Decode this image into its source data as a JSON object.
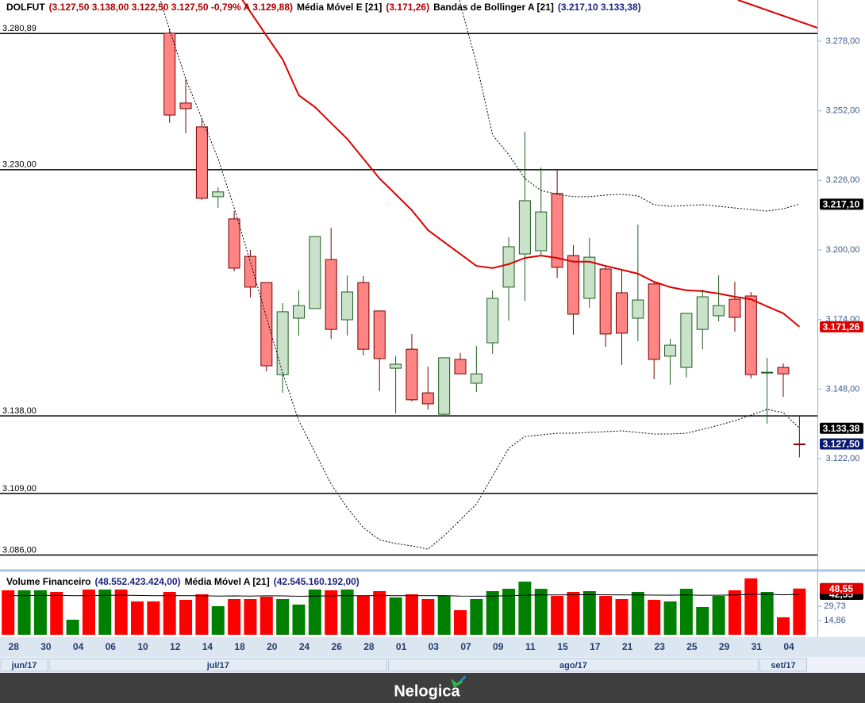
{
  "chart_data": [
    {
      "type": "candlestick",
      "symbol": "DOLFUT",
      "symbol_color": "#000000",
      "quote": "(3.127,50  3.138,00  3.122,50  3.127,50  -0,79%  A 3.129,88)",
      "quote_color": "#b00000",
      "categories": [
        "28",
        null,
        "30",
        null,
        "04",
        null,
        "06",
        null,
        "10",
        null,
        "12",
        null,
        "14",
        null,
        "18",
        null,
        "20",
        null,
        "24",
        null,
        "26",
        null,
        "28",
        null,
        "01",
        null,
        "03",
        null,
        "07",
        null,
        "09",
        null,
        "11",
        null,
        "15",
        null,
        "17",
        null,
        "21",
        null,
        "23",
        null,
        "25",
        null,
        "29",
        null,
        "31",
        null,
        "04",
        null
      ],
      "months": [
        "jun/17",
        "jun/17",
        "jun/17",
        "jul/17",
        "jul/17",
        "jul/17",
        "jul/17",
        "jul/17",
        "jul/17",
        "jul/17",
        "jul/17",
        "jul/17",
        "jul/17",
        "jul/17",
        "jul/17",
        "jul/17",
        "jul/17",
        "jul/17",
        "jul/17",
        "jul/17",
        "jul/17",
        "jul/17",
        "jul/17",
        "jul/17",
        "ago/17",
        "ago/17",
        "ago/17",
        "ago/17",
        "ago/17",
        "ago/17",
        "ago/17",
        "ago/17",
        "ago/17",
        "ago/17",
        "ago/17",
        "ago/17",
        "ago/17",
        "ago/17",
        "ago/17",
        "ago/17",
        "ago/17",
        "ago/17",
        "ago/17",
        "ago/17",
        "ago/17",
        "ago/17",
        "ago/17",
        "set/17",
        "set/17",
        "set/17"
      ],
      "open": [
        null,
        null,
        null,
        null,
        null,
        null,
        null,
        null,
        null,
        null,
        3281.0,
        3254.9,
        3246.0,
        3219.9,
        3211.6,
        3197.6,
        3187.8,
        3153.4,
        3174.5,
        3178.1,
        3196.4,
        3173.9,
        3187.8,
        3177.2,
        3155.8,
        3162.9,
        3146.6,
        3138.6,
        3159.1,
        3150.2,
        3165.3,
        3186.1,
        3198.5,
        3199.7,
        3221.1,
        3197.9,
        3181.9,
        3192.9,
        3184.0,
        3174.5,
        3187.3,
        3160.3,
        3156.1,
        3170.3,
        3175.4,
        3181.6,
        3182.8,
        3154.0,
        3156.1,
        3127.5
      ],
      "high": [
        null,
        null,
        null,
        null,
        null,
        null,
        null,
        null,
        null,
        null,
        3282.7,
        3263.8,
        3249.0,
        3223.4,
        3214.5,
        3200.0,
        3187.8,
        3180.1,
        3184.9,
        3205.0,
        3208.3,
        3190.5,
        3190.2,
        3177.2,
        3160.3,
        3168.6,
        3156.4,
        3159.7,
        3161.5,
        3164.1,
        3184.9,
        3204.8,
        3244.2,
        3230.8,
        3230.2,
        3201.8,
        3204.5,
        3194.4,
        3192.9,
        3209.5,
        3188.1,
        3166.8,
        3176.3,
        3185.2,
        3190.5,
        3188.1,
        3184.3,
        3159.7,
        3157.6,
        3138.0
      ],
      "low": [
        null,
        null,
        null,
        null,
        null,
        null,
        null,
        null,
        null,
        null,
        3247.5,
        3243.6,
        3218.7,
        3215.7,
        3192.0,
        3182.2,
        3154.6,
        3146.6,
        3168.0,
        3178.1,
        3166.8,
        3168.0,
        3160.6,
        3147.2,
        3138.9,
        3143.4,
        3140.4,
        3138.0,
        3153.7,
        3146.9,
        3161.2,
        3173.6,
        3181.0,
        3198.2,
        3189.6,
        3168.3,
        3178.4,
        3163.8,
        3157.0,
        3165.9,
        3151.7,
        3149.6,
        3152.3,
        3162.9,
        3173.3,
        3169.5,
        3152.0,
        3135.1,
        3145.1,
        3122.5
      ],
      "close": [
        null,
        null,
        null,
        null,
        null,
        null,
        null,
        null,
        null,
        null,
        3250.4,
        3252.8,
        3219.3,
        3221.7,
        3193.2,
        3186.1,
        3156.7,
        3176.9,
        3179.2,
        3205.0,
        3170.3,
        3184.3,
        3162.9,
        3159.4,
        3157.3,
        3144.0,
        3142.5,
        3159.7,
        3153.7,
        3153.7,
        3181.9,
        3201.2,
        3218.4,
        3214.2,
        3193.5,
        3176.0,
        3197.3,
        3168.6,
        3168.9,
        3181.3,
        3159.1,
        3164.4,
        3176.3,
        3182.5,
        3179.2,
        3174.8,
        3153.4,
        3154.3,
        3153.7,
        3127.5
      ],
      "up_color": "#c9e2c9",
      "up_edge": "#1f5f1f",
      "down_color": "#ff8585",
      "down_edge": "#7a0000",
      "series": [
        {
          "name": "Média Móvel E [21]",
          "value_text": "(3.171,26)",
          "color": "#dd0000",
          "text_color": "#b00000",
          "values": [
            null,
            null,
            null,
            null,
            null,
            null,
            null,
            null,
            null,
            null,
            null,
            null,
            null,
            null,
            3298.0,
            3289.0,
            3280.1,
            3271.2,
            3257.8,
            3253.4,
            3247.4,
            3241.5,
            3234.1,
            3226.7,
            3220.8,
            3214.8,
            3207.4,
            3202.9,
            3198.5,
            3194.0,
            3193.2,
            3194.7,
            3197.0,
            3197.9,
            3197.0,
            3195.6,
            3195.6,
            3194.0,
            3192.6,
            3191.1,
            3188.1,
            3186.1,
            3184.9,
            3184.6,
            3183.7,
            3182.5,
            3181.6,
            3178.9,
            3176.3,
            3171.26
          ]
        },
        {
          "name": "Bandas de Bollinger A [21]",
          "value_text": "(3.217,10  3.133,38)",
          "color": "#000000",
          "text_color": "#1a237e",
          "upper": [
            null,
            null,
            null,
            null,
            null,
            null,
            null,
            null,
            null,
            null,
            null,
            null,
            null,
            null,
            null,
            null,
            null,
            null,
            null,
            null,
            null,
            null,
            null,
            null,
            null,
            null,
            null,
            3320.0,
            3292.0,
            3269.7,
            3243.0,
            3235.6,
            3226.7,
            3222.2,
            3220.8,
            3219.9,
            3219.9,
            3220.5,
            3220.8,
            3220.2,
            3216.9,
            3216.3,
            3216.6,
            3216.9,
            3216.3,
            3215.7,
            3215.1,
            3214.5,
            3215.4,
            3217.1
          ],
          "lower": [
            null,
            null,
            null,
            null,
            null,
            null,
            null,
            null,
            null,
            3302.0,
            3282.2,
            3263.8,
            3249.1,
            3234.1,
            3215.7,
            3195.6,
            3174.8,
            3154.0,
            3136.2,
            3124.4,
            3112.5,
            3103.6,
            3096.2,
            3091.7,
            3090.3,
            3089.4,
            3088.2,
            3093.2,
            3099.1,
            3105.1,
            3115.5,
            3125.9,
            3130.3,
            3130.9,
            3131.5,
            3131.5,
            3131.8,
            3132.1,
            3132.4,
            3131.8,
            3131.2,
            3131.2,
            3131.5,
            3133.0,
            3134.5,
            3136.2,
            3138.3,
            3140.4,
            3139.2,
            3133.38
          ]
        }
      ],
      "ylim": [
        3081.4,
        3293.4
      ],
      "yticks": [
        {
          "value": 3122,
          "label": "3.122,00"
        },
        {
          "value": 3148,
          "label": "3.148,00"
        },
        {
          "value": 3174,
          "label": "3.174,00"
        },
        {
          "value": 3200,
          "label": "3.200,00"
        },
        {
          "value": 3226,
          "label": "3.226,00"
        },
        {
          "value": 3252,
          "label": "3.252,00"
        },
        {
          "value": 3278,
          "label": "3.278,00"
        }
      ],
      "hlines": [
        {
          "value": 3280.89,
          "label": "3.280,89"
        },
        {
          "value": 3230.0,
          "label": "3.230,00"
        },
        {
          "value": 3138.0,
          "label": "3.138,00"
        },
        {
          "value": 3109.0,
          "label": "3.109,00"
        },
        {
          "value": 3086.0,
          "label": "3.086,00"
        }
      ],
      "tags": [
        {
          "value": 3217.1,
          "label": "3.217,10",
          "color": "#000000"
        },
        {
          "value": 3171.26,
          "label": "3.171,26",
          "color": "#dd0000"
        },
        {
          "value": 3133.38,
          "label": "3.133,38",
          "color": "#000000"
        },
        {
          "value": 3127.5,
          "label": "3.127,50",
          "color": "#0b1a6e"
        }
      ]
    },
    {
      "type": "bar",
      "title": "Volume Financeiro",
      "value_text": "(48.552.423.424,00)",
      "text_color": "#1a237e",
      "values": [
        46.7,
        46.7,
        46.7,
        45.0,
        15.8,
        47.5,
        47.5,
        47.5,
        35.0,
        35.0,
        45.0,
        36.7,
        42.5,
        30.0,
        37.5,
        37.5,
        40.0,
        37.5,
        31.7,
        47.5,
        46.7,
        47.5,
        40.8,
        45.8,
        39.2,
        42.5,
        37.5,
        40.8,
        25.8,
        37.5,
        45.8,
        48.3,
        55.8,
        48.3,
        40.8,
        45.0,
        45.8,
        40.8,
        37.5,
        45.0,
        36.7,
        35.0,
        48.3,
        29.2,
        40.8,
        46.7,
        59.2,
        45.0,
        18.3,
        48.55
      ],
      "colors": [
        "#ff0000",
        "#008000",
        "#008000",
        "#ff0000",
        "#008000",
        "#ff0000",
        "#008000",
        "#ff0000",
        "#ff0000",
        "#ff0000",
        "#ff0000",
        "#ff0000",
        "#ff0000",
        "#008000",
        "#ff0000",
        "#ff0000",
        "#ff0000",
        "#008000",
        "#008000",
        "#008000",
        "#ff0000",
        "#008000",
        "#ff0000",
        "#ff0000",
        "#008000",
        "#ff0000",
        "#ff0000",
        "#008000",
        "#ff0000",
        "#008000",
        "#008000",
        "#008000",
        "#008000",
        "#008000",
        "#ff0000",
        "#ff0000",
        "#008000",
        "#ff0000",
        "#ff0000",
        "#008000",
        "#ff0000",
        "#008000",
        "#008000",
        "#008000",
        "#008000",
        "#ff0000",
        "#ff0000",
        "#008000",
        "#ff0000",
        "#ff0000"
      ],
      "series": [
        {
          "name": "Média Móvel A [21]",
          "value_text": "(42.545.160.192,00)",
          "color": "#000000",
          "text_color": "#1a237e",
          "values": [
            41.0,
            41.2,
            41.3,
            41.5,
            41.0,
            41.2,
            41.4,
            41.6,
            41.3,
            41.0,
            41.2,
            41.0,
            41.1,
            40.6,
            40.8,
            40.7,
            40.9,
            40.8,
            40.4,
            40.7,
            40.9,
            41.1,
            41.0,
            41.2,
            41.0,
            41.2,
            41.1,
            41.2,
            40.6,
            40.5,
            40.7,
            41.0,
            41.6,
            41.9,
            41.8,
            42.0,
            42.1,
            42.0,
            41.8,
            41.9,
            41.7,
            41.6,
            41.8,
            41.5,
            41.6,
            41.8,
            42.4,
            42.5,
            42.0,
            42.55
          ]
        }
      ],
      "ylim": [
        0,
        60
      ],
      "yticks": [
        {
          "value": 14.86,
          "label": "14,86"
        },
        {
          "value": 29.73,
          "label": "29,73"
        }
      ],
      "tags": [
        {
          "value": 42.55,
          "label": "42,55",
          "color": "#000000"
        },
        {
          "value": 48.55,
          "label": "48,55",
          "color": "#dd0000"
        }
      ]
    }
  ],
  "footer": {
    "brand": "Nelogica"
  }
}
